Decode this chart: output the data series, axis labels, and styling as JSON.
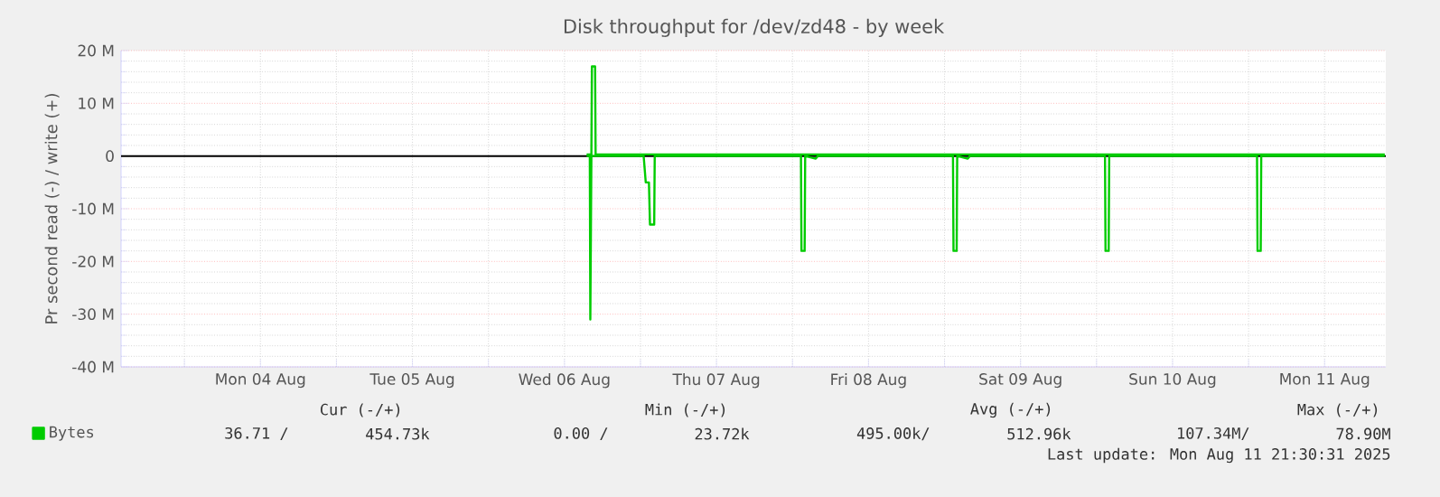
{
  "chart_data": {
    "type": "line",
    "title": "Disk throughput for /dev/zd48 - by week",
    "ylabel": "Pr second read (-) / write (+)",
    "xlim": [
      "2025-08-03T14:00",
      "2025-08-11T21:40"
    ],
    "xticks": [
      {
        "value": "2025-08-04T00:00",
        "label": null
      },
      {
        "value": "2025-08-04T12:00",
        "label": "Mon 04 Aug"
      },
      {
        "value": "2025-08-05T00:00",
        "label": null
      },
      {
        "value": "2025-08-05T12:00",
        "label": "Tue 05 Aug"
      },
      {
        "value": "2025-08-06T00:00",
        "label": null
      },
      {
        "value": "2025-08-06T12:00",
        "label": "Wed 06 Aug"
      },
      {
        "value": "2025-08-07T00:00",
        "label": null
      },
      {
        "value": "2025-08-07T12:00",
        "label": "Thu 07 Aug"
      },
      {
        "value": "2025-08-08T00:00",
        "label": null
      },
      {
        "value": "2025-08-08T12:00",
        "label": "Fri 08 Aug"
      },
      {
        "value": "2025-08-09T00:00",
        "label": null
      },
      {
        "value": "2025-08-09T12:00",
        "label": "Sat 09 Aug"
      },
      {
        "value": "2025-08-10T00:00",
        "label": null
      },
      {
        "value": "2025-08-10T12:00",
        "label": "Sun 10 Aug"
      },
      {
        "value": "2025-08-11T00:00",
        "label": null
      },
      {
        "value": "2025-08-11T12:00",
        "label": "Mon 11 Aug"
      }
    ],
    "ylim": [
      -40,
      20
    ],
    "yticks": [
      {
        "value": -40,
        "label": "-40 M"
      },
      {
        "value": -30,
        "label": "-30 M"
      },
      {
        "value": -20,
        "label": "-20 M"
      },
      {
        "value": -10,
        "label": "-10 M"
      },
      0,
      {
        "value": 10,
        "label": "10 M"
      },
      {
        "value": 20,
        "label": "20 M"
      }
    ],
    "grid": true,
    "legend": "bottom left",
    "ref_lines": [
      {
        "axis": "y",
        "value": 0,
        "color": "#000000"
      }
    ],
    "series": [
      {
        "name": "Bytes",
        "color": "#00cc00",
        "x": [
          "2025-08-06T15:30",
          "2025-08-06T16:15",
          "2025-08-06T16:20",
          "2025-08-06T16:50",
          "2025-08-06T16:55",
          "2025-08-11T21:30"
        ],
        "values": [
          0.3,
          0.3,
          17,
          17,
          0.3,
          0.3
        ]
      },
      {
        "color": "#00cc00",
        "x": [
          "2025-08-06T15:30",
          "2025-08-06T16:00",
          "2025-08-06T16:05",
          "2025-08-06T16:15",
          "2025-08-07T00:30",
          "2025-08-07T00:50",
          "2025-08-07T01:20",
          "2025-08-07T01:30",
          "2025-08-07T02:10",
          "2025-08-07T02:15",
          "2025-08-08T01:20",
          "2025-08-08T01:25",
          "2025-08-08T01:55",
          "2025-08-08T02:00",
          "2025-08-08T03:40",
          "2025-08-08T04:00",
          "2025-08-09T01:20",
          "2025-08-09T01:25",
          "2025-08-09T01:55",
          "2025-08-09T02:00",
          "2025-08-09T03:40",
          "2025-08-09T04:00",
          "2025-08-10T01:20",
          "2025-08-10T01:25",
          "2025-08-10T01:55",
          "2025-08-10T02:00",
          "2025-08-11T01:20",
          "2025-08-11T01:25",
          "2025-08-11T01:55",
          "2025-08-11T02:00",
          "2025-08-11T21:30"
        ],
        "values": [
          0,
          0,
          -31,
          0,
          0,
          -5,
          -5,
          -13,
          -13,
          0,
          0,
          -18,
          -18,
          0,
          -0.5,
          0,
          0,
          -18,
          -18,
          0,
          -0.5,
          0,
          0,
          -18,
          -18,
          0,
          0,
          -18,
          -18,
          0,
          0
        ]
      }
    ],
    "annotations": [
      "Cur (-/+)",
      "Min (-/+)",
      "Avg (-/+)",
      "Max (-/+)",
      "36.71 /",
      "454.73k",
      "0.00 /",
      "23.72k",
      "495.00k/",
      "512.96k",
      "107.34M/",
      "78.90M",
      "Last update: Mon Aug 11 21:30:31 2025"
    ]
  }
}
